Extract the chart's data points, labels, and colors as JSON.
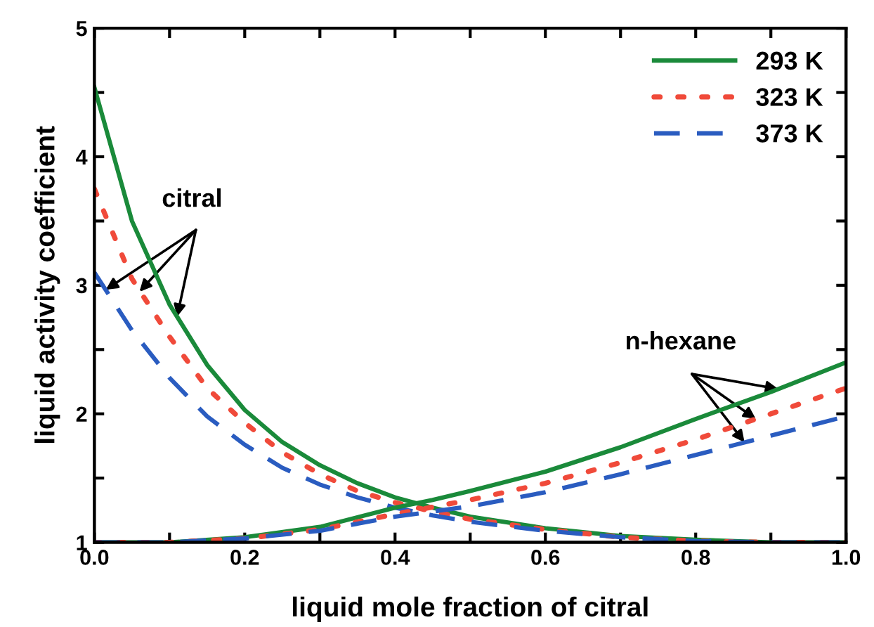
{
  "chart_data": {
    "type": "line",
    "xlabel": "liquid mole fraction of citral",
    "ylabel": "liquid activity coefficient",
    "xlim": [
      0,
      1
    ],
    "ylim": [
      1,
      5
    ],
    "xticks": [
      {
        "value": 0,
        "label": "0.0"
      },
      {
        "value": 0.1,
        "label": null
      },
      {
        "value": 0.2,
        "label": "0.2"
      },
      {
        "value": 0.3,
        "label": null
      },
      {
        "value": 0.4,
        "label": "0.4"
      },
      {
        "value": 0.5,
        "label": null
      },
      {
        "value": 0.6,
        "label": "0.6"
      },
      {
        "value": 0.7,
        "label": null
      },
      {
        "value": 0.8,
        "label": "0.8"
      },
      {
        "value": 0.9,
        "label": null
      },
      {
        "value": 1.0,
        "label": "1.0"
      }
    ],
    "yticks": [
      1,
      {
        "value": 1.5,
        "label": null
      },
      2,
      {
        "value": 2.5,
        "label": null
      },
      3,
      {
        "value": 3.5,
        "label": null
      },
      4,
      {
        "value": 4.5,
        "label": null
      },
      5
    ],
    "grid": false,
    "legend": "top right",
    "marker": "none",
    "series": [
      {
        "name": "293 K",
        "color": "#1a8a3a",
        "line_style": "solid",
        "x": [
          0,
          0.05,
          0.1,
          0.15,
          0.2,
          0.25,
          0.3,
          0.35,
          0.4,
          0.45,
          0.5,
          0.6,
          0.7,
          0.8,
          0.9,
          1.0
        ],
        "values": [
          4.54,
          3.5,
          2.85,
          2.38,
          2.03,
          1.78,
          1.6,
          1.46,
          1.35,
          1.27,
          1.2,
          1.11,
          1.05,
          1.02,
          1.0,
          1.0
        ]
      },
      {
        "name": "323 K",
        "color": "#f04a3a",
        "line_style": "dotted",
        "x": [
          0,
          0.05,
          0.1,
          0.15,
          0.2,
          0.25,
          0.3,
          0.35,
          0.4,
          0.45,
          0.5,
          0.6,
          0.7,
          0.8,
          0.9,
          1.0
        ],
        "values": [
          3.75,
          3.05,
          2.6,
          2.2,
          1.93,
          1.7,
          1.53,
          1.4,
          1.31,
          1.24,
          1.18,
          1.1,
          1.04,
          1.01,
          1.0,
          1.0
        ]
      },
      {
        "name": "373 K",
        "color": "#2a5cc0",
        "line_style": "dashed",
        "x": [
          0,
          0.05,
          0.1,
          0.15,
          0.2,
          0.25,
          0.3,
          0.35,
          0.4,
          0.45,
          0.5,
          0.6,
          0.7,
          0.8,
          0.9,
          1.0
        ],
        "values": [
          3.1,
          2.65,
          2.28,
          1.98,
          1.76,
          1.58,
          1.45,
          1.35,
          1.27,
          1.21,
          1.16,
          1.09,
          1.04,
          1.01,
          1.0,
          1.0
        ]
      },
      {
        "color": "#1a8a3a",
        "line_style": "solid",
        "x": [
          0,
          0.1,
          0.2,
          0.3,
          0.4,
          0.45,
          0.5,
          0.6,
          0.7,
          0.8,
          0.9,
          1.0
        ],
        "values": [
          1.0,
          1.0,
          1.04,
          1.12,
          1.27,
          1.33,
          1.4,
          1.55,
          1.74,
          1.96,
          2.17,
          2.4
        ]
      },
      {
        "color": "#f04a3a",
        "line_style": "dotted",
        "x": [
          0,
          0.1,
          0.2,
          0.3,
          0.4,
          0.5,
          0.6,
          0.7,
          0.8,
          0.9,
          1.0
        ],
        "values": [
          1.0,
          1.0,
          1.03,
          1.1,
          1.22,
          1.33,
          1.46,
          1.62,
          1.8,
          2.0,
          2.2
        ]
      },
      {
        "color": "#2a5cc0",
        "line_style": "dashed",
        "x": [
          0,
          0.1,
          0.2,
          0.3,
          0.4,
          0.5,
          0.6,
          0.7,
          0.8,
          0.9,
          1.0
        ],
        "values": [
          1.0,
          1.0,
          1.03,
          1.09,
          1.2,
          1.28,
          1.39,
          1.53,
          1.68,
          1.83,
          1.98
        ]
      }
    ],
    "annotations": [
      {
        "text": "citral",
        "x": 0.06,
        "y": 2.95
      },
      {
        "text": "n-hexane",
        "x": 0.88,
        "y": 1.96
      }
    ]
  }
}
